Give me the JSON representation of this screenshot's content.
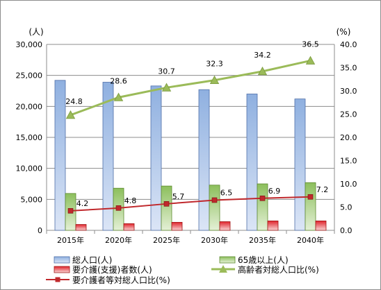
{
  "chart_data": {
    "type": "bar",
    "categories": [
      "2015年",
      "2020年",
      "2025年",
      "2030年",
      "2035年",
      "2040年"
    ],
    "series": [
      {
        "name": "総人口(人)",
        "kind": "bar",
        "axis": "left",
        "color": "#8fb0e0",
        "values": [
          24200,
          23900,
          23300,
          22700,
          22000,
          21200
        ]
      },
      {
        "name": "65歳以上(人)",
        "kind": "bar",
        "axis": "left",
        "color": "#8cbf5c",
        "values": [
          5950,
          6800,
          7150,
          7300,
          7500,
          7700
        ]
      },
      {
        "name": "要介護(支援)者数(人)",
        "kind": "bar",
        "axis": "left",
        "color": "#e0242c",
        "values": [
          950,
          1080,
          1300,
          1400,
          1520,
          1520
        ]
      },
      {
        "name": "高齢者対総人口比(%)",
        "kind": "line",
        "axis": "right",
        "color": "#9bbb59",
        "marker": "triangle",
        "values": [
          24.8,
          28.6,
          30.7,
          32.3,
          34.2,
          36.5
        ],
        "labels": [
          "24.8",
          "28.6",
          "30.7",
          "32.3",
          "34.2",
          "36.5"
        ]
      },
      {
        "name": "要介護者等対総人口比(%)",
        "kind": "line",
        "axis": "right",
        "color": "#c0282c",
        "marker": "square",
        "values": [
          4.2,
          4.8,
          5.7,
          6.5,
          6.9,
          7.2
        ],
        "labels": [
          "4.2",
          "4.8",
          "5.7",
          "6.5",
          "6.9",
          "7.2"
        ]
      }
    ],
    "y_left": {
      "unit": "(人)",
      "min": 0,
      "max": 30000,
      "step": 5000,
      "ticks": [
        "0",
        "5,000",
        "10,000",
        "15,000",
        "20,000",
        "25,000",
        "30,000"
      ]
    },
    "y_right": {
      "unit": "(%)",
      "min": 0,
      "max": 40,
      "step": 5,
      "ticks": [
        "0.0",
        "5.0",
        "10.0",
        "15.0",
        "20.0",
        "25.0",
        "30.0",
        "35.0",
        "40.0"
      ]
    },
    "grid": true,
    "legend_position": "bottom"
  }
}
